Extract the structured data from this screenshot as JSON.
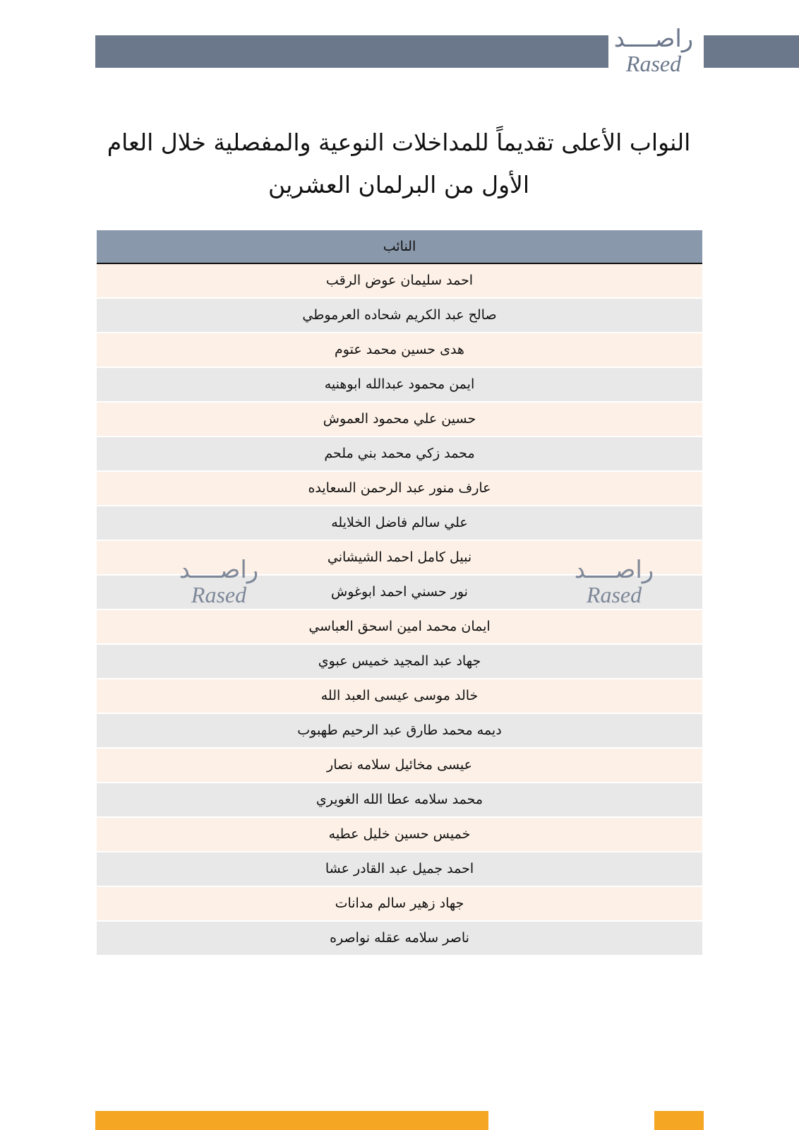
{
  "logo": {
    "arabic": "راصــــد",
    "latin": "Rased"
  },
  "title": "النواب الأعلى تقديماً للمداخلات النوعية والمفصلية خلال العام الأول من البرلمان العشرين",
  "table": {
    "header": "النائب",
    "rows": [
      "احمد سليمان عوض الرقب",
      "صالح عبد الكريم شحاده العرموطي",
      "هدى حسين محمد عتوم",
      "ايمن محمود عبدالله ابوهنيه",
      "حسين علي محمود العموش",
      "محمد زكي محمد بني ملحم",
      "عارف منور عبد الرحمن السعايده",
      "علي سالم فاضل الخلايله",
      "نبيل كامل احمد الشيشاني",
      "نور حسني احمد ابوغوش",
      "ايمان محمد امين اسحق العباسي",
      "جهاد عبد المجيد خميس عبوي",
      "خالد موسى عيسى العبد الله",
      "ديمه محمد طارق عبد الرحيم طهبوب",
      "عيسى مخائيل سلامه نصار",
      "محمد سلامه عطا الله الغويري",
      "خميس حسين خليل عطيه",
      "احمد جميل عبد القادر عشا",
      "جهاد زهير سالم مدانات",
      "ناصر سلامه عقله نواصره"
    ]
  }
}
